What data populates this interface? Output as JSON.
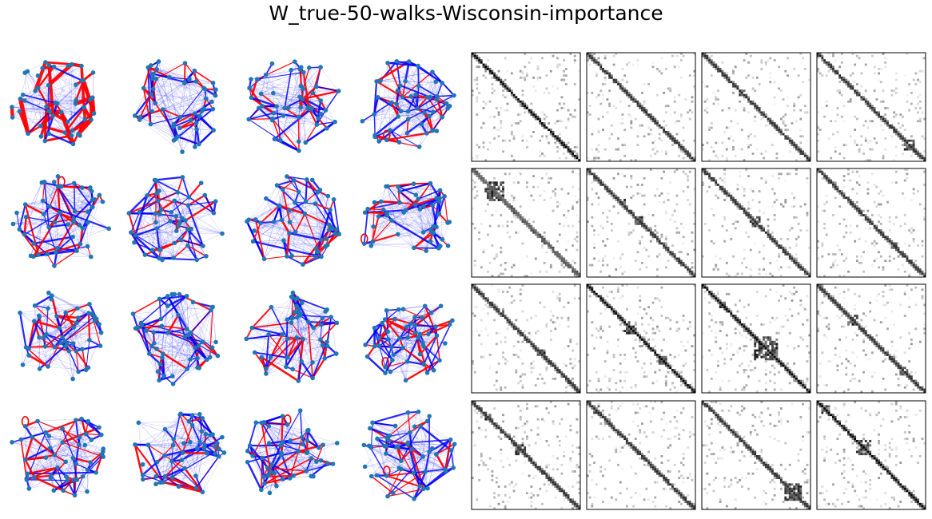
{
  "figure": {
    "title": "W_true-50-walks-Wisconsin-importance"
  },
  "chart_data": {
    "type": "figure-grid",
    "rows": 4,
    "graph_columns": 4,
    "matrix_columns": 4,
    "nodes_per_graph": 50,
    "matrix_size": 50,
    "colors": {
      "node": "#1f77b4",
      "edge_blue": "#0000ff",
      "edge_red": "#ff0000",
      "matrix_frame": "#000000",
      "matrix_bg": "#ffffff"
    },
    "graphs": [
      {
        "row": 0,
        "col": 0,
        "style": "red-heavy",
        "self_loops": 0
      },
      {
        "row": 0,
        "col": 1,
        "style": "mixed",
        "self_loops": 0
      },
      {
        "row": 0,
        "col": 2,
        "style": "mixed",
        "self_loops": 0
      },
      {
        "row": 0,
        "col": 3,
        "style": "mixed",
        "self_loops": 1
      },
      {
        "row": 1,
        "col": 0,
        "style": "mixed",
        "self_loops": 1
      },
      {
        "row": 1,
        "col": 1,
        "style": "mixed",
        "self_loops": 0
      },
      {
        "row": 1,
        "col": 2,
        "style": "mixed",
        "self_loops": 0
      },
      {
        "row": 1,
        "col": 3,
        "style": "mixed",
        "self_loops": 1
      },
      {
        "row": 2,
        "col": 0,
        "style": "mixed",
        "self_loops": 0
      },
      {
        "row": 2,
        "col": 1,
        "style": "mixed",
        "self_loops": 0
      },
      {
        "row": 2,
        "col": 2,
        "style": "mixed",
        "self_loops": 0
      },
      {
        "row": 2,
        "col": 3,
        "style": "mixed",
        "self_loops": 1
      },
      {
        "row": 3,
        "col": 0,
        "style": "mixed",
        "self_loops": 1
      },
      {
        "row": 3,
        "col": 1,
        "style": "mixed",
        "self_loops": 0
      },
      {
        "row": 3,
        "col": 2,
        "style": "mixed",
        "self_loops": 1
      },
      {
        "row": 3,
        "col": 3,
        "style": "mixed",
        "self_loops": 1
      }
    ],
    "matrices": [
      {
        "row": 0,
        "col": 0,
        "diagonal": "strong",
        "blocks": []
      },
      {
        "row": 0,
        "col": 1,
        "diagonal": "medium",
        "blocks": [
          [
            5,
            6
          ]
        ]
      },
      {
        "row": 0,
        "col": 2,
        "diagonal": "medium",
        "blocks": [
          [
            17,
            19
          ],
          [
            27,
            28
          ]
        ]
      },
      {
        "row": 0,
        "col": 3,
        "diagonal": "medium",
        "blocks": [
          [
            40,
            44
          ]
        ]
      },
      {
        "row": 1,
        "col": 0,
        "diagonal": "light",
        "blocks": [
          [
            6,
            14
          ],
          [
            15,
            16
          ]
        ]
      },
      {
        "row": 1,
        "col": 1,
        "diagonal": "medium",
        "blocks": [
          [
            14,
            17
          ],
          [
            22,
            25
          ]
        ]
      },
      {
        "row": 1,
        "col": 2,
        "diagonal": "medium",
        "blocks": [
          [
            22,
            26
          ]
        ]
      },
      {
        "row": 1,
        "col": 3,
        "diagonal": "medium",
        "blocks": [
          [
            34,
            36
          ]
        ]
      },
      {
        "row": 2,
        "col": 0,
        "diagonal": "medium",
        "blocks": [
          [
            12,
            14
          ],
          [
            30,
            33
          ]
        ]
      },
      {
        "row": 2,
        "col": 1,
        "diagonal": "strong",
        "blocks": [
          [
            17,
            22
          ],
          [
            33,
            36
          ]
        ]
      },
      {
        "row": 2,
        "col": 2,
        "diagonal": "strong",
        "blocks": [
          [
            8,
            10
          ],
          [
            24,
            34
          ]
        ]
      },
      {
        "row": 2,
        "col": 3,
        "diagonal": "medium",
        "blocks": [
          [
            14,
            18
          ],
          [
            38,
            41
          ]
        ]
      },
      {
        "row": 3,
        "col": 0,
        "diagonal": "medium",
        "blocks": [
          [
            6,
            8
          ],
          [
            20,
            24
          ]
        ]
      },
      {
        "row": 3,
        "col": 1,
        "diagonal": "medium",
        "blocks": [
          [
            2,
            5
          ]
        ]
      },
      {
        "row": 3,
        "col": 2,
        "diagonal": "medium",
        "blocks": [
          [
            38,
            45
          ]
        ]
      },
      {
        "row": 3,
        "col": 3,
        "diagonal": "strong",
        "blocks": [
          [
            2,
            5
          ],
          [
            18,
            24
          ]
        ]
      }
    ]
  }
}
